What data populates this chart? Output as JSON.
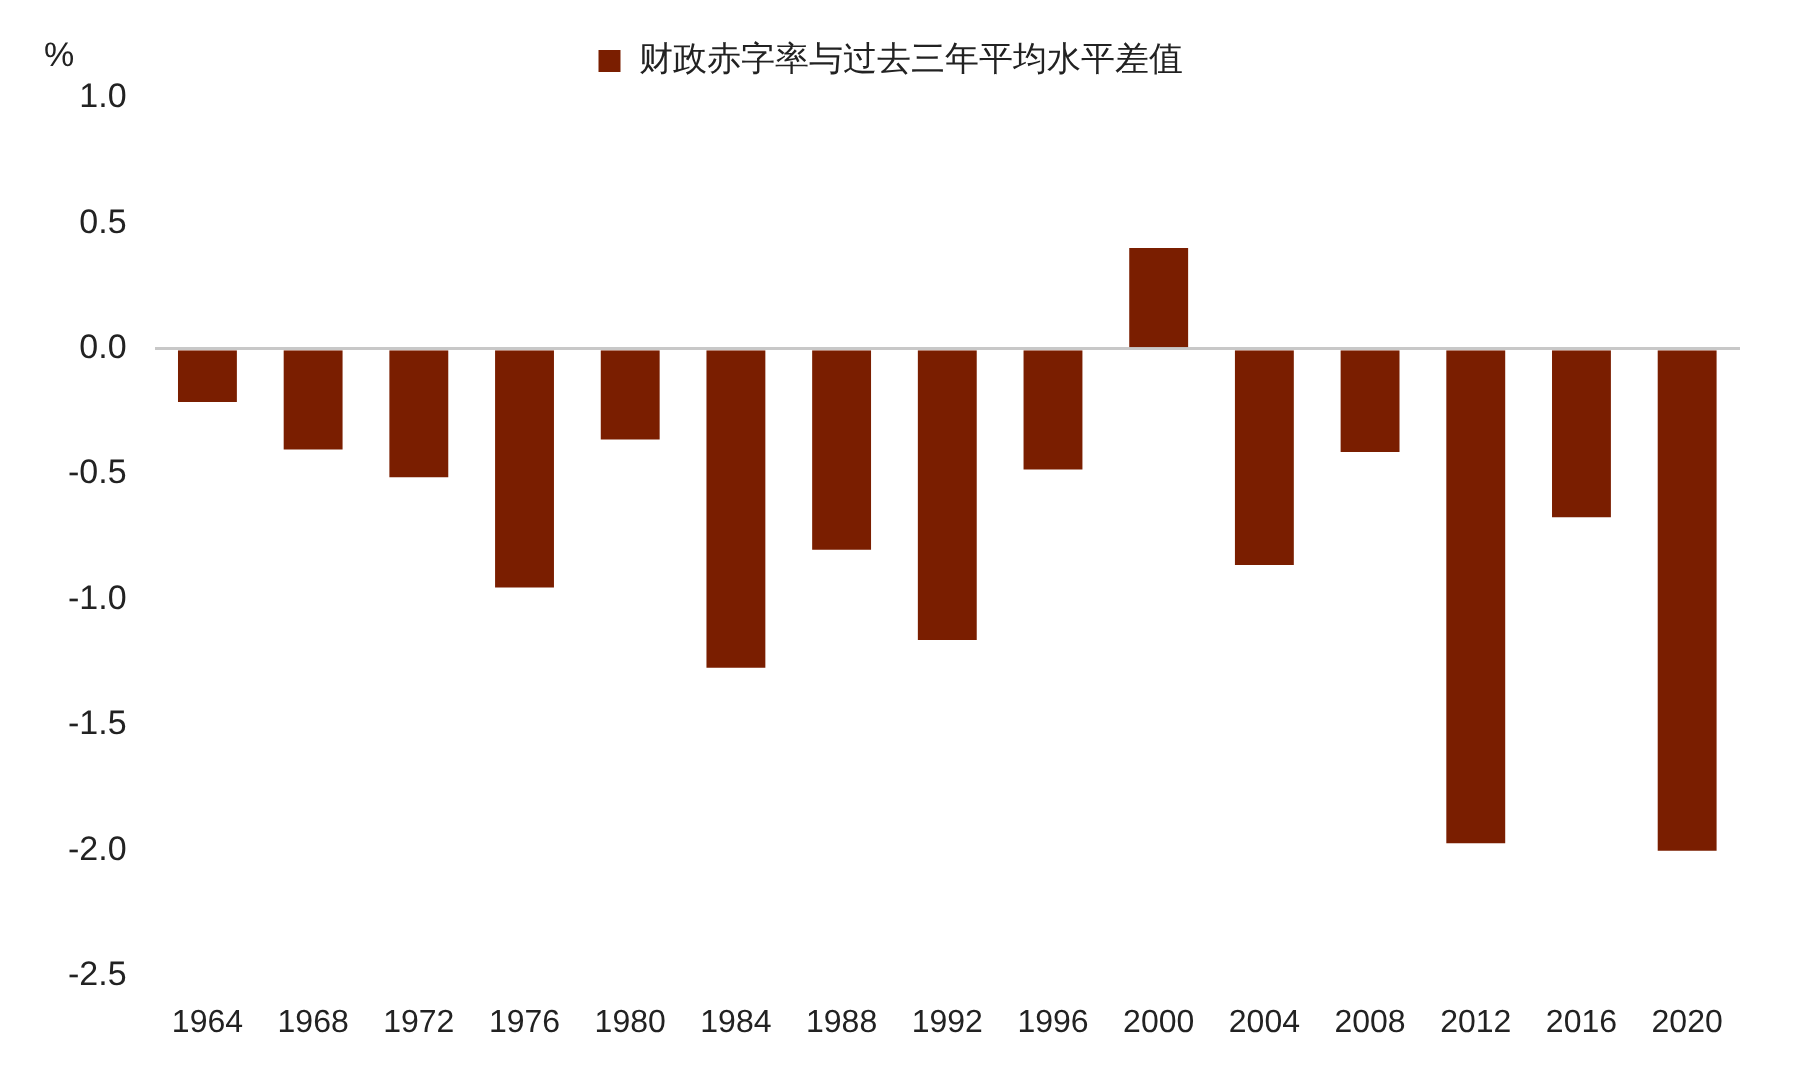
{
  "chart_data": {
    "type": "bar",
    "ylabel": "%",
    "categories": [
      "1964",
      "1968",
      "1972",
      "1976",
      "1980",
      "1984",
      "1988",
      "1992",
      "1996",
      "2000",
      "2004",
      "2008",
      "2012",
      "2016",
      "2020"
    ],
    "series": [
      {
        "name": "财政赤字率与过去三年平均水平差值",
        "color": "#7a1e00",
        "values": [
          -0.22,
          -0.41,
          -0.52,
          -0.96,
          -0.37,
          -1.28,
          -0.81,
          -1.17,
          -0.49,
          0.41,
          -0.87,
          -0.42,
          -1.98,
          -0.68,
          -2.01
        ]
      }
    ],
    "ylim": [
      -2.5,
      1.0
    ],
    "yticks": [
      {
        "value": 1.0,
        "label": "1.0"
      },
      {
        "value": 0.5,
        "label": "0.5"
      },
      {
        "value": 0,
        "label": "0.0"
      },
      {
        "value": -0.5,
        "label": "-0.5"
      },
      {
        "value": -1.0,
        "label": "-1.0"
      },
      {
        "value": -1.5,
        "label": "-1.5"
      },
      {
        "value": -2.0,
        "label": "-2.0"
      },
      {
        "value": -2.5,
        "label": "-2.5"
      }
    ],
    "legend": "top"
  }
}
